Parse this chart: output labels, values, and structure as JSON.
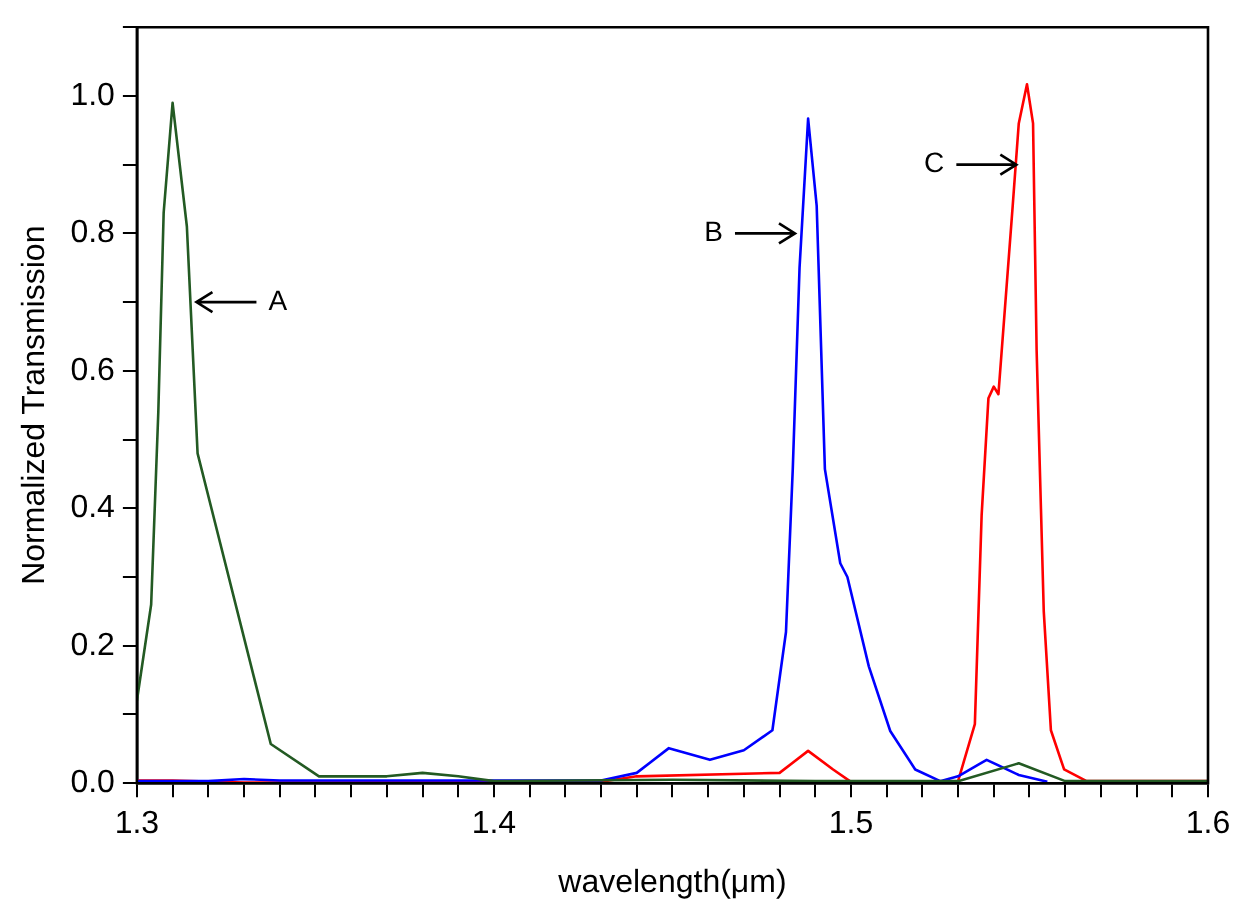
{
  "chart_data": {
    "type": "line",
    "xlabel": "wavelength(μm)",
    "ylabel": "Normalized Transmission",
    "xlim": [
      1.3,
      1.6
    ],
    "ylim": [
      0,
      1.1
    ],
    "xticks": [
      {
        "value": 1.3,
        "label": "1.3"
      },
      {
        "value": 1.31,
        "label": null
      },
      {
        "value": 1.32,
        "label": null
      },
      {
        "value": 1.33,
        "label": null
      },
      {
        "value": 1.34,
        "label": null
      },
      {
        "value": 1.35,
        "label": null
      },
      {
        "value": 1.36,
        "label": null
      },
      {
        "value": 1.37,
        "label": null
      },
      {
        "value": 1.38,
        "label": null
      },
      {
        "value": 1.39,
        "label": null
      },
      {
        "value": 1.4,
        "label": "1.4"
      },
      {
        "value": 1.41,
        "label": null
      },
      {
        "value": 1.42,
        "label": null
      },
      {
        "value": 1.43,
        "label": null
      },
      {
        "value": 1.44,
        "label": null
      },
      {
        "value": 1.45,
        "label": null
      },
      {
        "value": 1.46,
        "label": null
      },
      {
        "value": 1.47,
        "label": null
      },
      {
        "value": 1.48,
        "label": null
      },
      {
        "value": 1.49,
        "label": null
      },
      {
        "value": 1.5,
        "label": "1.5"
      },
      {
        "value": 1.51,
        "label": null
      },
      {
        "value": 1.52,
        "label": null
      },
      {
        "value": 1.53,
        "label": null
      },
      {
        "value": 1.54,
        "label": null
      },
      {
        "value": 1.55,
        "label": null
      },
      {
        "value": 1.56,
        "label": null
      },
      {
        "value": 1.57,
        "label": null
      },
      {
        "value": 1.58,
        "label": null
      },
      {
        "value": 1.59,
        "label": null
      },
      {
        "value": 1.6,
        "label": "1.6"
      }
    ],
    "yticks": [
      {
        "value": 0,
        "label": "0.0"
      },
      {
        "value": 0.1,
        "label": null
      },
      {
        "value": 0.2,
        "label": "0.2"
      },
      {
        "value": 0.3,
        "label": null
      },
      {
        "value": 0.4,
        "label": "0.4"
      },
      {
        "value": 0.5,
        "label": null
      },
      {
        "value": 0.6,
        "label": "0.6"
      },
      {
        "value": 0.7,
        "label": null
      },
      {
        "value": 0.8,
        "label": "0.8"
      },
      {
        "value": 0.9,
        "label": null
      },
      {
        "value": 1.0,
        "label": "1.0"
      },
      {
        "value": 1.1,
        "label": null
      }
    ],
    "grid": false,
    "legend": false,
    "marker": "none",
    "line_style": "solid",
    "series": [
      {
        "color": "#235a23",
        "x": [
          1.3,
          1.304,
          1.306,
          1.3075,
          1.31,
          1.314,
          1.317,
          1.3375,
          1.351,
          1.37,
          1.38,
          1.39,
          1.4,
          1.45,
          1.49,
          1.53,
          1.547,
          1.56,
          1.6
        ],
        "values": [
          0.12,
          0.26,
          0.54,
          0.83,
          0.99,
          0.81,
          0.48,
          0.057,
          0.01,
          0.01,
          0.015,
          0.01,
          0.003,
          0.005,
          0.003,
          0.003,
          0.029,
          0.003,
          0.003
        ]
      },
      {
        "color": "#0000ff",
        "x": [
          1.3,
          1.32,
          1.33,
          1.34,
          1.38,
          1.43,
          1.44,
          1.449,
          1.4605,
          1.47,
          1.478,
          1.4818,
          1.4837,
          1.4856,
          1.488,
          1.4904,
          1.4927,
          1.497,
          1.499,
          1.505,
          1.511,
          1.518,
          1.525,
          1.53,
          1.538,
          1.547,
          1.555
        ],
        "values": [
          0.003,
          0.003,
          0.006,
          0.004,
          0.004,
          0.004,
          0.015,
          0.051,
          0.034,
          0.048,
          0.077,
          0.22,
          0.457,
          0.75,
          0.967,
          0.84,
          0.457,
          0.32,
          0.3,
          0.17,
          0.076,
          0.02,
          0.003,
          0.01,
          0.034,
          0.012,
          0.002
        ]
      },
      {
        "color": "#ff0000",
        "x": [
          1.3,
          1.31,
          1.33,
          1.43,
          1.44,
          1.48,
          1.488,
          1.495,
          1.5,
          1.53,
          1.5347,
          1.5366,
          1.5385,
          1.54,
          1.5413,
          1.5453,
          1.547,
          1.5493,
          1.551,
          1.552,
          1.554,
          1.556,
          1.5597,
          1.566,
          1.6
        ],
        "values": [
          0.004,
          0.004,
          0.001,
          0.002,
          0.01,
          0.015,
          0.047,
          0.02,
          0.002,
          0.003,
          0.086,
          0.39,
          0.56,
          0.577,
          0.566,
          0.84,
          0.96,
          1.017,
          0.96,
          0.63,
          0.25,
          0.077,
          0.02,
          0.003,
          0.003
        ]
      }
    ],
    "annotations": [
      {
        "text": "A",
        "x": 1.315,
        "y": 0.7
      },
      {
        "text": "B",
        "x": 1.486,
        "y": 0.8
      },
      {
        "text": "C",
        "x": 1.548,
        "y": 0.9
      }
    ]
  }
}
